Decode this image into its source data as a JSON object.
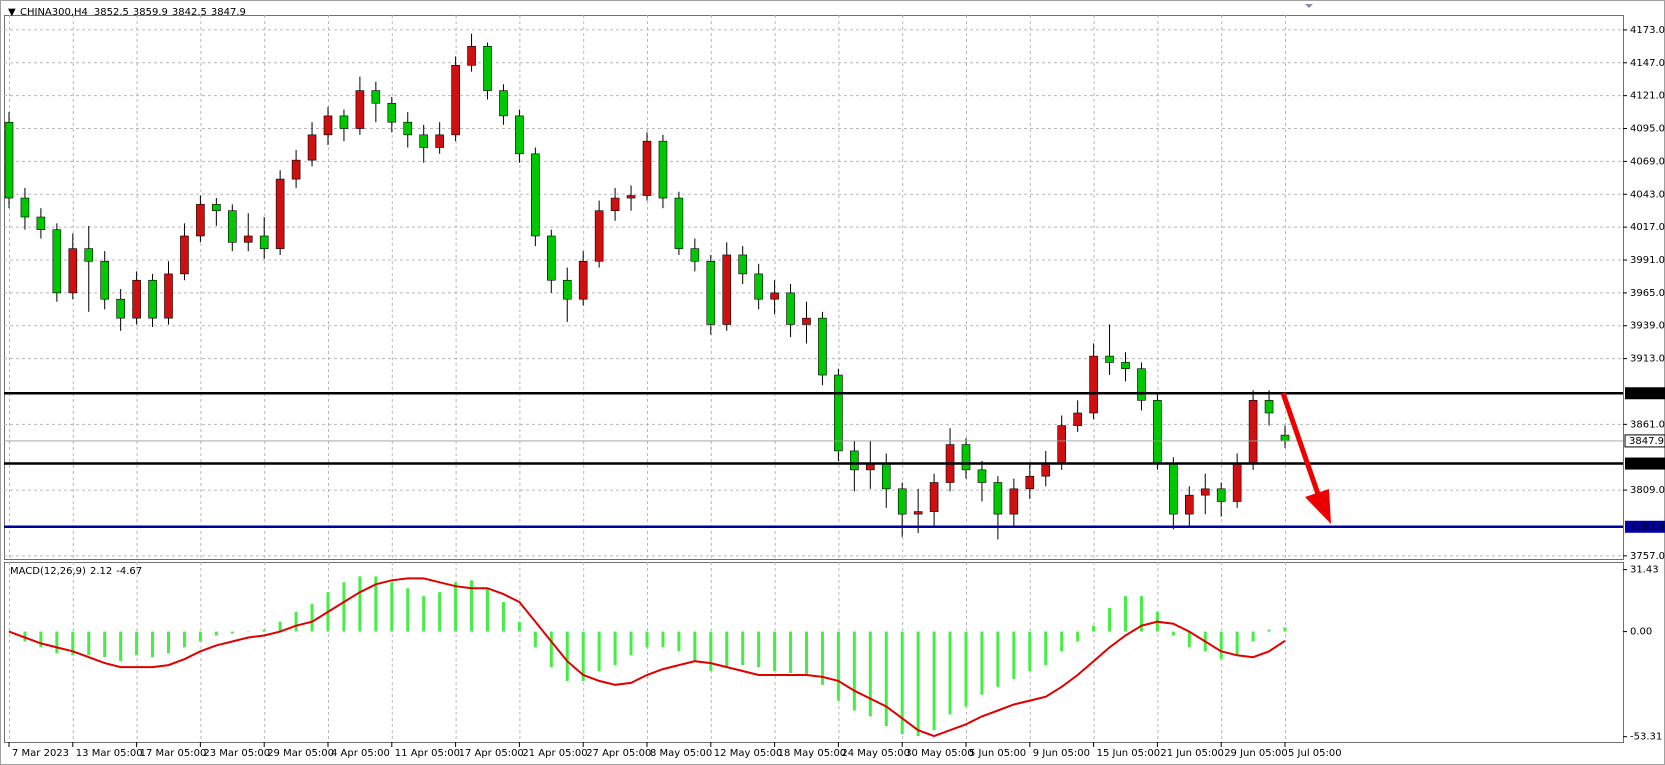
{
  "chart_data": [
    {
      "type": "candlestick",
      "symbol": "CHINA300,H4",
      "up_color": "#d01010",
      "down_color": "#00c800",
      "open": [
        4100,
        4040,
        4025,
        4015,
        3965,
        4000,
        3990,
        3960,
        3945,
        3975,
        3945,
        3980,
        4010,
        4035,
        4030,
        4005,
        4010,
        4000,
        4055,
        4070,
        4090,
        4105,
        4095,
        4125,
        4115,
        4100,
        4090,
        4080,
        4090,
        4145,
        4160,
        4125,
        4105,
        4075,
        4010,
        3975,
        3960,
        3990,
        4030,
        4040,
        4042,
        4085,
        4040,
        4000,
        3990,
        3940,
        3995,
        3980,
        3960,
        3965,
        3940,
        3945,
        3900,
        3840,
        3825,
        3830,
        3810,
        3790,
        3792,
        3815,
        3845,
        3825,
        3815,
        3790,
        3810,
        3820,
        3830,
        3860,
        3870,
        3915,
        3910,
        3905,
        3880,
        3830,
        3790,
        3805,
        3810,
        3800,
        3830,
        3880,
        3852.5
      ],
      "high": [
        4108,
        4048,
        4032,
        4020,
        4012,
        4018,
        3998,
        3968,
        3982,
        3980,
        3990,
        4020,
        4042,
        4040,
        4035,
        4028,
        4025,
        4062,
        4078,
        4100,
        4112,
        4110,
        4136,
        4132,
        4120,
        4108,
        4098,
        4100,
        4152,
        4170,
        4163,
        4130,
        4110,
        4080,
        4015,
        3985,
        3998,
        4038,
        4048,
        4050,
        4092,
        4090,
        4045,
        4008,
        3995,
        4005,
        4002,
        3988,
        3975,
        3972,
        3958,
        3950,
        3905,
        3848,
        3848,
        3838,
        3815,
        3810,
        3822,
        3858,
        3850,
        3832,
        3820,
        3818,
        3830,
        3840,
        3868,
        3880,
        3925,
        3940,
        3918,
        3910,
        3885,
        3835,
        3812,
        3822,
        3815,
        3838,
        3888,
        3888,
        3859.9
      ],
      "low": [
        4032,
        4015,
        4008,
        3958,
        3960,
        3950,
        3952,
        3935,
        3940,
        3938,
        3940,
        3975,
        4005,
        4018,
        3998,
        3998,
        3992,
        3995,
        4048,
        4065,
        4082,
        4085,
        4090,
        4100,
        4092,
        4080,
        4068,
        4075,
        4085,
        4140,
        4118,
        4098,
        4068,
        4002,
        3965,
        3942,
        3955,
        3985,
        4022,
        4030,
        4038,
        4032,
        3995,
        3982,
        3932,
        3935,
        3972,
        3952,
        3948,
        3930,
        3925,
        3892,
        3832,
        3808,
        3810,
        3795,
        3772,
        3775,
        3780,
        3808,
        3818,
        3800,
        3770,
        3780,
        3802,
        3812,
        3825,
        3855,
        3865,
        3900,
        3895,
        3872,
        3825,
        3778,
        3780,
        3790,
        3788,
        3795,
        3825,
        3860,
        3842.5
      ],
      "close": [
        4040,
        4025,
        4015,
        3965,
        4000,
        3990,
        3960,
        3945,
        3975,
        3945,
        3980,
        4010,
        4035,
        4030,
        4005,
        4010,
        4000,
        4055,
        4070,
        4090,
        4105,
        4095,
        4125,
        4115,
        4100,
        4090,
        4080,
        4090,
        4145,
        4160,
        4125,
        4105,
        4075,
        4010,
        3975,
        3960,
        3990,
        4030,
        4040,
        4042,
        4085,
        4040,
        4000,
        3990,
        3940,
        3995,
        3980,
        3960,
        3965,
        3940,
        3945,
        3900,
        3840,
        3825,
        3830,
        3810,
        3790,
        3792,
        3815,
        3845,
        3825,
        3815,
        3790,
        3810,
        3820,
        3830,
        3860,
        3870,
        3915,
        3910,
        3905,
        3880,
        3830,
        3790,
        3805,
        3810,
        3800,
        3830,
        3880,
        3870,
        3847.9
      ],
      "ylim": [
        3754.5,
        4184.8
      ],
      "yticks": [
        {
          "value": 4173,
          "label": "4173.0"
        },
        {
          "value": 4147,
          "label": "4147.0"
        },
        {
          "value": 4121,
          "label": "4121.0"
        },
        {
          "value": 4095,
          "label": "4095.0"
        },
        {
          "value": 4069,
          "label": "4069.0"
        },
        {
          "value": 4043,
          "label": "4043.0"
        },
        {
          "value": 4017,
          "label": "4017.0"
        },
        {
          "value": 3991,
          "label": "3991.0"
        },
        {
          "value": 3965,
          "label": "3965.0"
        },
        {
          "value": 3939,
          "label": "3939.0"
        },
        {
          "value": 3913,
          "label": "3913.0"
        },
        {
          "value": 3861,
          "label": "3861.0"
        },
        {
          "value": 3809,
          "label": "3809.0"
        },
        {
          "value": 3757,
          "label": "3757.0"
        }
      ],
      "xticks": [
        {
          "value": 0,
          "label": "7 Mar 2023"
        },
        {
          "value": 4,
          "label": "13 Mar 05:00"
        },
        {
          "value": 8,
          "label": "17 Mar 05:00"
        },
        {
          "value": 12,
          "label": "23 Mar 05:00"
        },
        {
          "value": 16,
          "label": "29 Mar 05:00"
        },
        {
          "value": 20,
          "label": "4 Apr 05:00"
        },
        {
          "value": 24,
          "label": "11 Apr 05:00"
        },
        {
          "value": 28,
          "label": "17 Apr 05:00"
        },
        {
          "value": 32,
          "label": "21 Apr 05:00"
        },
        {
          "value": 36,
          "label": "27 Apr 05:00"
        },
        {
          "value": 40,
          "label": "8 May 05:00"
        },
        {
          "value": 44,
          "label": "12 May 05:00"
        },
        {
          "value": 48,
          "label": "18 May 05:00"
        },
        {
          "value": 52,
          "label": "24 May 05:00"
        },
        {
          "value": 56,
          "label": "30 May 05:00"
        },
        {
          "value": 60,
          "label": "5 Jun 05:00"
        },
        {
          "value": 64,
          "label": "9 Jun 05:00"
        },
        {
          "value": 68,
          "label": "15 Jun 05:00"
        },
        {
          "value": 72,
          "label": "21 Jun 05:00"
        },
        {
          "value": 76,
          "label": "29 Jun 05:00"
        },
        {
          "value": 80,
          "label": "5 Jul 05:00"
        }
      ],
      "levels": [
        {
          "value": 3885.6,
          "color": "#000000"
        },
        {
          "value": 3830,
          "label": "3830.0",
          "color": "#000000"
        },
        {
          "value": 3780,
          "label": "3780.0",
          "color": "#0000a0"
        }
      ],
      "grid": true
    },
    {
      "type": "macd",
      "name": "MACD(12,26,9)",
      "histogram_color": "#44ee44",
      "signal_color": "#e00000",
      "histogram": [
        0,
        -5,
        -8,
        -11,
        -12,
        -12,
        -13,
        -15,
        -12,
        -13,
        -11,
        -8,
        -5,
        -2,
        -1,
        0,
        1,
        5,
        10,
        14,
        20,
        25,
        28,
        28,
        25,
        22,
        18,
        20,
        25,
        26,
        22,
        15,
        5,
        -8,
        -18,
        -25,
        -25,
        -20,
        -17,
        -12,
        -8,
        -8,
        -10,
        -15,
        -20,
        -18,
        -17,
        -18,
        -20,
        -21,
        -22,
        -27,
        -35,
        -40,
        -43,
        -48,
        -52,
        -53,
        -50,
        -42,
        -38,
        -32,
        -28,
        -24,
        -20,
        -17,
        -10,
        -5,
        3,
        12,
        18,
        18,
        10,
        -2,
        -8,
        -10,
        -14,
        -12,
        -5,
        1,
        2.12
      ],
      "signal": [
        0,
        -3,
        -6,
        -8,
        -10,
        -13,
        -16,
        -18,
        -18,
        -18,
        -17,
        -14,
        -10,
        -7,
        -5,
        -3,
        -2,
        0,
        3,
        5,
        10,
        15,
        20,
        24,
        26,
        27,
        27,
        25,
        23,
        22,
        22,
        19,
        15,
        5,
        -5,
        -15,
        -22,
        -25,
        -27,
        -26,
        -22,
        -19,
        -17,
        -15,
        -16,
        -18,
        -20,
        -22,
        -22,
        -22,
        -22,
        -23,
        -25,
        -30,
        -34,
        -38,
        -44,
        -50,
        -53,
        -50,
        -47,
        -43,
        -40,
        -37,
        -35,
        -33,
        -28,
        -22,
        -15,
        -8,
        -2,
        3,
        5,
        4,
        0,
        -5,
        -10,
        -12,
        -13,
        -10,
        -4.67
      ],
      "ylim": [
        -56,
        35.3
      ],
      "yticks": [
        31.43,
        {
          "value": 0,
          "label": "0.00"
        },
        -53.31
      ]
    }
  ]
}
